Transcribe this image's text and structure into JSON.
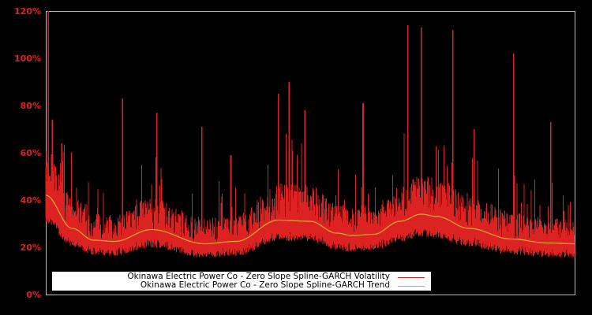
{
  "chart_data": {
    "type": "line",
    "title": "",
    "xlabel": "",
    "ylabel": "",
    "ylim": [
      0,
      120
    ],
    "y_ticks": [
      "0%",
      "20%",
      "40%",
      "60%",
      "80%",
      "100%",
      "120%"
    ],
    "grid": false,
    "legend_position": "bottom-left inside",
    "series": [
      {
        "name": "Okinawa Electric Power Co - Zero Slope Spline-GARCH Volatility",
        "color": "#dd2222",
        "description": "Daily volatility, baseline ~15-30% with spikes up to ~120%",
        "notable_peaks_percent": [
          120,
          74,
          64,
          83,
          77,
          71,
          59,
          85,
          90,
          78,
          81,
          114,
          113,
          112,
          70,
          102,
          73
        ]
      },
      {
        "name": "Okinawa Electric Power Co - Zero Slope Spline-GARCH Trend",
        "color": "#ddaa33",
        "x_fraction": [
          0.0,
          0.05,
          0.09,
          0.13,
          0.2,
          0.3,
          0.36,
          0.44,
          0.5,
          0.55,
          0.58,
          0.62,
          0.67,
          0.71,
          0.74,
          0.8,
          0.88,
          0.95,
          1.0
        ],
        "values": [
          42,
          28,
          23,
          22.5,
          27.5,
          21.5,
          22.5,
          31.5,
          31,
          26,
          25,
          25.5,
          31,
          34,
          33,
          28,
          23.5,
          21.8,
          21.5
        ]
      }
    ]
  },
  "axis": {
    "y_labels": [
      "120%",
      "100%",
      "80%",
      "60%",
      "40%",
      "20%",
      "0%"
    ]
  },
  "legend": {
    "items": [
      {
        "label": "Okinawa Electric Power Co - Zero Slope Spline-GARCH Volatility",
        "color": "#dd2222"
      },
      {
        "label": "Okinawa Electric Power Co - Zero Slope Spline-GARCH Trend",
        "color": "#ddaa33"
      }
    ]
  }
}
